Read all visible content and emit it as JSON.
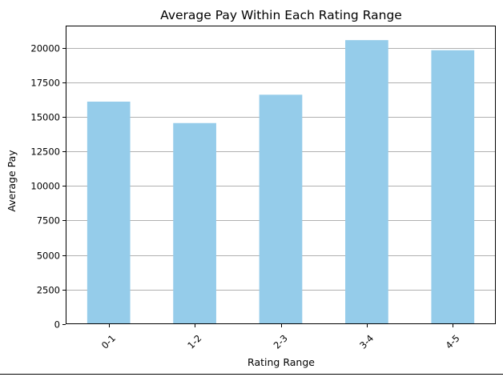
{
  "chart_data": {
    "type": "bar",
    "title": "Average Pay Within Each Rating Range",
    "xlabel": "Rating Range",
    "ylabel": "Average Pay",
    "categories": [
      "0-1",
      "1-2",
      "2-3",
      "3-4",
      "4-5"
    ],
    "values": [
      16100,
      14550,
      16600,
      20550,
      19820
    ],
    "ylim": [
      0,
      21600
    ],
    "yticks": [
      0,
      2500,
      5000,
      7500,
      10000,
      12500,
      15000,
      17500,
      20000
    ],
    "grid": "y",
    "bar_color": "#95ccea",
    "grid_color": "#b0b0b0",
    "axis_color": "#000000"
  }
}
